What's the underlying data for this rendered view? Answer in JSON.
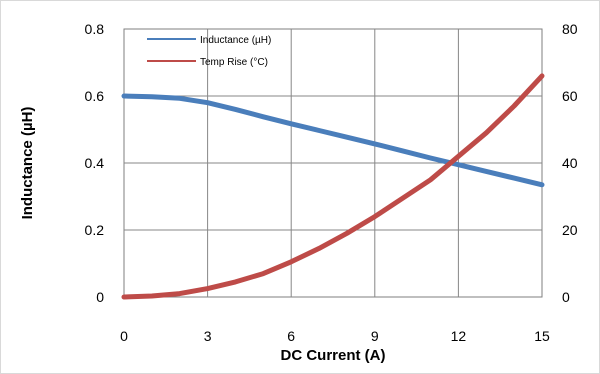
{
  "chart_data": {
    "type": "line",
    "xlabel": "DC Current (A)",
    "ylabel": "Inductance (µH)",
    "xlim": [
      0,
      15
    ],
    "ylim": [
      0,
      0.8
    ],
    "y2lim": [
      0,
      80
    ],
    "xticks": [
      "0",
      "3",
      "6",
      "9",
      "12",
      "15"
    ],
    "yticks": [
      "0",
      "0.2",
      "0.4",
      "0.6",
      "0.8"
    ],
    "y2ticks": [
      "0",
      "20",
      "40",
      "60",
      "80"
    ],
    "grid": true,
    "legend_position": "top-left",
    "series": [
      {
        "name": "Inductance (µH)",
        "axis": "left",
        "color": "#4a7ebb",
        "x": [
          0,
          1,
          2,
          3,
          4,
          5,
          6,
          7,
          8,
          9,
          10,
          11,
          12,
          13,
          14,
          15
        ],
        "y": [
          0.6,
          0.598,
          0.593,
          0.58,
          0.56,
          0.538,
          0.517,
          0.497,
          0.477,
          0.457,
          0.436,
          0.415,
          0.395,
          0.375,
          0.355,
          0.335
        ]
      },
      {
        "name": "Temp Rise (°C)",
        "axis": "right",
        "color": "#be4b48",
        "x": [
          0,
          1,
          2,
          3,
          4,
          5,
          6,
          7,
          8,
          9,
          10,
          11,
          12,
          13,
          14,
          15
        ],
        "y": [
          0,
          0.3,
          1,
          2.5,
          4.5,
          7,
          10.5,
          14.5,
          19,
          24,
          29.5,
          35,
          42,
          49,
          57,
          66
        ]
      }
    ]
  }
}
